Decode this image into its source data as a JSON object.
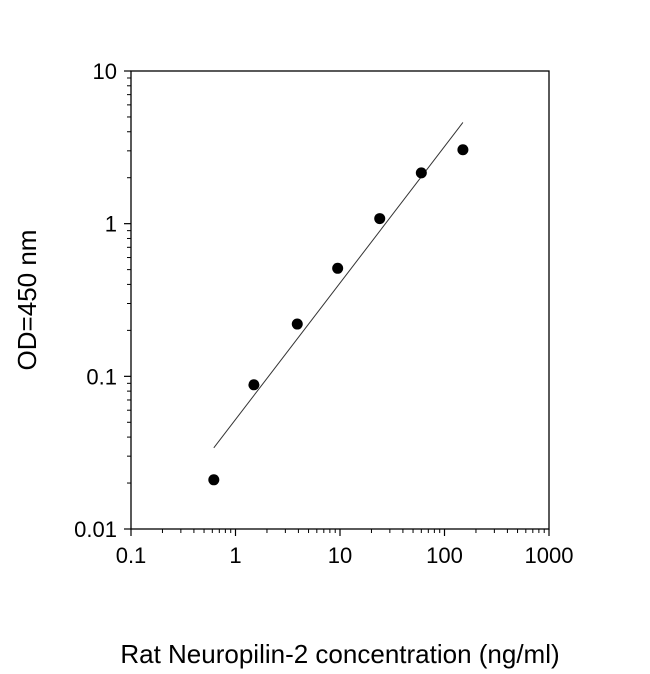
{
  "chart_data": {
    "type": "scatter",
    "xscale": "log",
    "yscale": "log",
    "xlabel": "Rat  Neuropilin-2 concentration (ng/ml)",
    "ylabel": "OD=450 nm",
    "xlim": [
      0.1,
      1000
    ],
    "ylim": [
      0.01,
      10
    ],
    "xticks": [
      0.1,
      1,
      10,
      100,
      1000
    ],
    "yticks": [
      0.01,
      0.1,
      1,
      10
    ],
    "xtick_labels": [
      "0.1",
      "1",
      "10",
      "100",
      "1000"
    ],
    "ytick_labels": [
      "0.01",
      "0.1",
      "1",
      "10"
    ],
    "grid": false,
    "legend": "none",
    "points": [
      {
        "x": 0.62,
        "y": 0.021
      },
      {
        "x": 1.5,
        "y": 0.088
      },
      {
        "x": 3.9,
        "y": 0.22
      },
      {
        "x": 9.5,
        "y": 0.51
      },
      {
        "x": 24,
        "y": 1.08
      },
      {
        "x": 60,
        "y": 2.15
      },
      {
        "x": 150,
        "y": 3.05
      }
    ],
    "fit_line": {
      "x": [
        0.62,
        150
      ],
      "y": [
        0.034,
        4.6
      ]
    },
    "marker_color": "#000000",
    "line_color": "#333333"
  }
}
